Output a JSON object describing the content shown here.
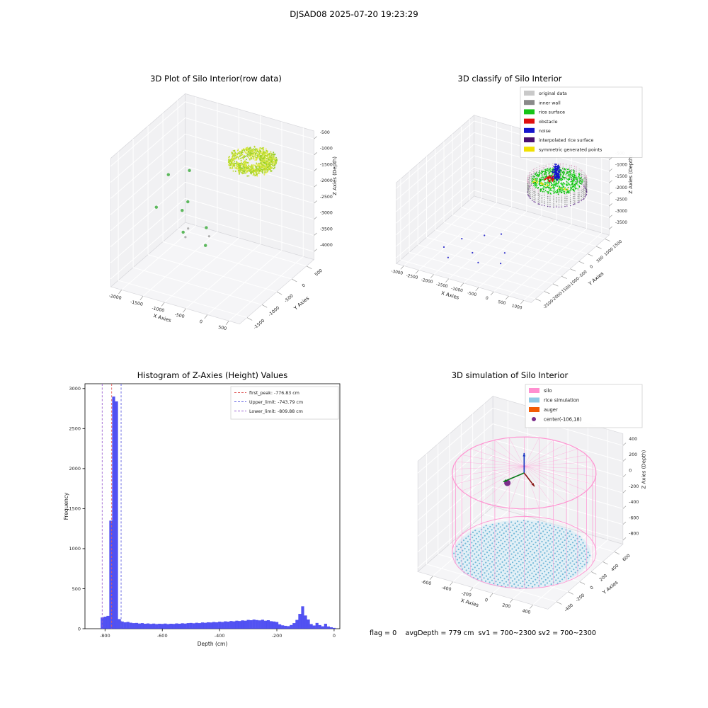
{
  "figure": {
    "title": "DJSAD08 2025-07-20 19:23:29",
    "status_line": "flag = 0    avgDepth = 779 cm  sv1 = 700~2300 sv2 = 700~2300"
  },
  "chart_data": [
    {
      "id": "raw3d",
      "type": "scatter",
      "title": "3D Plot of Silo Interior(row data)",
      "xlabel": "X Axies",
      "ylabel": "Y Axies",
      "zlabel": "Z Axies (Depth)",
      "xticks": [
        -2000,
        -1500,
        -1000,
        -500,
        0,
        500
      ],
      "yticks": [
        -1500,
        -1000,
        -500,
        0,
        500
      ],
      "zticks": [
        -500,
        -1000,
        -1500,
        -2000,
        -2500,
        -3000,
        -3500,
        -4000
      ],
      "xlim": [
        -2250,
        750
      ],
      "ylim": [
        -1750,
        750
      ],
      "zlim": [
        -4250,
        -250
      ],
      "objects": [
        {
          "kind": "annulus",
          "seed": 11,
          "cx": 0.64,
          "cy": 0.8,
          "w": 0.76,
          "th": 0.05,
          "r": 0.165,
          "rin": 0.055,
          "n": 1100,
          "size": 1.0,
          "gap": [
            2.5,
            4.0
          ],
          "colors": [
            "#c8e02e",
            "#aad32a",
            "#d9e83c",
            "#93cc2f",
            "#e6ea52",
            "#b8dc30"
          ]
        },
        {
          "kind": "points",
          "color": "#5cb85c",
          "size": 2.2,
          "pts": [
            [
              0.1,
              0.6,
              0.6
            ],
            [
              0.18,
              0.3,
              0.52
            ],
            [
              0.3,
              0.44,
              0.46
            ],
            [
              0.24,
              0.62,
              0.42
            ],
            [
              0.4,
              0.28,
              0.4
            ],
            [
              0.47,
              0.47,
              0.36
            ],
            [
              0.16,
              0.78,
              0.56
            ],
            [
              0.55,
              0.32,
              0.32
            ]
          ]
        },
        {
          "kind": "points",
          "color": "#b0b0b0",
          "size": 1.6,
          "pts": [
            [
              0.36,
              0.38,
              0.3
            ],
            [
              0.3,
              0.52,
              0.28
            ],
            [
              0.44,
              0.56,
              0.24
            ]
          ]
        }
      ]
    },
    {
      "id": "classify3d",
      "type": "scatter",
      "title": "3D classify of Silo Interior",
      "xlabel": "X Axies",
      "ylabel": "Y Axies",
      "zlabel": "Z Axies (Depth)",
      "xticks": [
        -3000,
        -2500,
        -2000,
        -1500,
        -1000,
        -500,
        0,
        500,
        1000
      ],
      "yticks": [
        -2500,
        -2000,
        -1500,
        -1000,
        -500,
        0,
        500,
        1000,
        1500
      ],
      "zticks": [
        -500,
        -1000,
        -1500,
        -2000,
        -2500,
        -3000,
        -3500
      ],
      "xlim": [
        -3250,
        1250
      ],
      "ylim": [
        -2750,
        1750
      ],
      "zlim": [
        -3750,
        -250
      ],
      "legend": [
        {
          "label": "original data",
          "color": "#c9c9c9"
        },
        {
          "label": "inner wall",
          "color": "#8a8a8a"
        },
        {
          "label": "rice surface",
          "color": "#17c417"
        },
        {
          "label": "obstacle",
          "color": "#e01010"
        },
        {
          "label": "noise",
          "color": "#1515cc"
        },
        {
          "label": "interpolated rice surface",
          "color": "#4a1070"
        },
        {
          "label": "symmetric generated points",
          "color": "#f0e000"
        }
      ],
      "objects": [
        {
          "kind": "points",
          "color": "#3333cc",
          "size": 1.1,
          "pts": [
            [
              0.18,
              0.3,
              0.04
            ],
            [
              0.28,
              0.18,
              0.06
            ],
            [
              0.22,
              0.46,
              0.03
            ],
            [
              0.38,
              0.32,
              0.05
            ],
            [
              0.33,
              0.56,
              0.04
            ],
            [
              0.48,
              0.22,
              0.06
            ],
            [
              0.55,
              0.44,
              0.03
            ],
            [
              0.42,
              0.62,
              0.05
            ],
            [
              0.6,
              0.3,
              0.04
            ]
          ]
        },
        {
          "kind": "wall",
          "seed": 5,
          "cx": 0.8,
          "cy": 0.68,
          "r": 0.19,
          "w0": 0.7,
          "w1": 0.87,
          "ncols": 64,
          "nrows": 8,
          "size": 0.8,
          "colors": [
            "#9a9a9a",
            "#a8a8a8",
            "#8d8d8d"
          ],
          "top": [
            "#d8a8c4",
            "#cfcfcf",
            "#e0b4cc"
          ],
          "bottom": [
            "#5a2a80",
            "#6a3a90",
            "#7d4aa0"
          ]
        },
        {
          "kind": "disk",
          "seed": 9,
          "cx": 0.8,
          "cy": 0.68,
          "r": 0.165,
          "w": 0.84,
          "th": 0.035,
          "n": 600,
          "size": 0.9,
          "colors": [
            "#11c411",
            "#2ed32e",
            "#00b800",
            "#49e049"
          ]
        },
        {
          "kind": "cluster",
          "seed": 6,
          "cx": 0.8,
          "cy": 0.6,
          "dx": 0.26,
          "dy": 0.03,
          "w0": 0.835,
          "w1": 0.85,
          "n": 25,
          "size": 0.9,
          "color": "#f0e000"
        },
        {
          "kind": "cluster",
          "seed": 3,
          "cx": 0.76,
          "cy": 0.66,
          "dx": 0.05,
          "dy": 0.05,
          "w0": 0.84,
          "w1": 0.89,
          "n": 30,
          "size": 1.1,
          "color": "#e01010"
        },
        {
          "kind": "cluster",
          "seed": 4,
          "cx": 0.78,
          "cy": 0.7,
          "dx": 0.04,
          "dy": 0.04,
          "w0": 0.84,
          "w1": 1.0,
          "n": 110,
          "size": 1.0,
          "color": "#1515cc"
        }
      ]
    },
    {
      "id": "histogram",
      "type": "bar",
      "title": "Histogram of Z-Axies (Height) Values",
      "xlabel": "Depth (cm)",
      "ylabel": "Frequency",
      "xticks": [
        -800,
        -600,
        -400,
        -200,
        0
      ],
      "yticks": [
        0,
        500,
        1000,
        1500,
        2000,
        2500,
        3000
      ],
      "xlim": [
        -870,
        20
      ],
      "ylim": [
        0,
        3060
      ],
      "bin_start": -815,
      "bin_width": 10,
      "bar_color": "#3a3af0",
      "values": [
        140,
        150,
        160,
        1350,
        2900,
        2840,
        120,
        90,
        80,
        85,
        75,
        70,
        72,
        65,
        70,
        62,
        66,
        60,
        64,
        58,
        62,
        60,
        64,
        58,
        62,
        60,
        66,
        62,
        68,
        64,
        70,
        72,
        68,
        74,
        70,
        78,
        74,
        80,
        78,
        84,
        80,
        88,
        84,
        92,
        88,
        96,
        92,
        100,
        96,
        104,
        100,
        110,
        106,
        114,
        108,
        104,
        112,
        100,
        106,
        94,
        90,
        84,
        55,
        42,
        36,
        32,
        46,
        70,
        110,
        185,
        280,
        165,
        115,
        58,
        40,
        72,
        45,
        30,
        62,
        28,
        18,
        10
      ],
      "vlines": [
        {
          "x": -776.83,
          "color": "#e06060"
        },
        {
          "x": -743.79,
          "color": "#6060e0"
        },
        {
          "x": -809.88,
          "color": "#9a60d0"
        }
      ],
      "legend": [
        {
          "label": "first_peak: -776.83 cm",
          "color": "#e06060",
          "marker": "dline"
        },
        {
          "label": "Upper_limit: -743.79 cm",
          "color": "#6060e0",
          "marker": "dline"
        },
        {
          "label": "Lower_limit: -809.88 cm",
          "color": "#9a60d0",
          "marker": "dline"
        }
      ]
    },
    {
      "id": "sim3d",
      "type": "scatter",
      "title": "3D simulation of Silo Interior",
      "xlabel": "X Axies",
      "ylabel": "Y Axies",
      "zlabel": "Z Axies (Depth)",
      "xticks": [
        -600,
        -400,
        -200,
        0,
        200,
        400
      ],
      "yticks": [
        -400,
        -200,
        0,
        200,
        400,
        600
      ],
      "zticks": [
        400,
        200,
        0,
        -200,
        -400,
        -600,
        -800
      ],
      "xlim": [
        -750,
        550
      ],
      "ylim": [
        -550,
        750
      ],
      "zlim": [
        -850,
        550
      ],
      "legend": [
        {
          "label": "silo",
          "color": "#ff8fd0"
        },
        {
          "label": "rice simulation",
          "color": "#8ecae6"
        },
        {
          "label": "auger",
          "color": "#f25c05"
        },
        {
          "label": "center(-106,18)",
          "color": "#7b2d8b",
          "marker": "dot"
        }
      ],
      "objects": [
        {
          "kind": "dotdisk",
          "cx": 0.5,
          "cy": 0.52,
          "r": 0.46,
          "w": 0.02,
          "fill": "#cfe9f5",
          "opacity": 0.55,
          "dot": "#74b9d8",
          "dotsize": 1.1,
          "grid": 15
        },
        {
          "kind": "wirecyl",
          "cx": 0.5,
          "cy": 0.55,
          "r": 0.48,
          "w0": 0.02,
          "w1": 0.74,
          "apex": 0.8,
          "nv": 30,
          "rings": [
            0.02,
            0.74
          ],
          "color": "#ff8fd0"
        },
        {
          "kind": "sphere",
          "cx": 0.4,
          "cy": 0.5,
          "w": 0.645,
          "size": 4.5,
          "color": "#7b2d8b"
        },
        {
          "kind": "arrow",
          "from": [
            0.5,
            0.55,
            0.74
          ],
          "to": [
            0.5,
            0.55,
            0.92
          ],
          "color": "#1530c0"
        },
        {
          "kind": "arrow",
          "from": [
            0.5,
            0.55,
            0.74
          ],
          "to": [
            0.38,
            0.48,
            0.66
          ],
          "color": "#0a7a1a"
        },
        {
          "kind": "arrow",
          "from": [
            0.5,
            0.55,
            0.74
          ],
          "to": [
            0.62,
            0.48,
            0.7
          ],
          "color": "#8b1a1a"
        }
      ]
    }
  ]
}
